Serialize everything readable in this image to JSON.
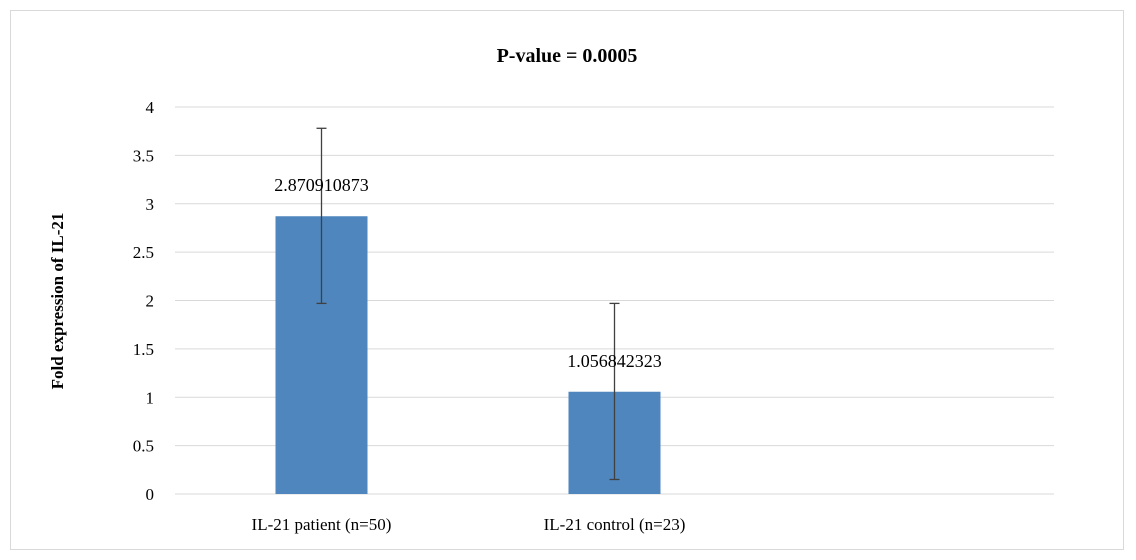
{
  "chart_data": {
    "type": "bar",
    "title": "P-value = 0.0005",
    "xlabel": "",
    "ylabel": "Fold expression of IL-21",
    "categories": [
      "IL-21 patient (n=50)",
      "IL-21 control (n=23)"
    ],
    "values": [
      2.870910873,
      1.056842323
    ],
    "data_labels": [
      "2.870910873",
      "1.056842323"
    ],
    "error_bars": [
      {
        "low": 1.97,
        "high": 3.78
      },
      {
        "low": 0.15,
        "high": 1.97
      }
    ],
    "ylim": [
      0,
      4
    ],
    "yticks": [
      0,
      0.5,
      1,
      1.5,
      2,
      2.5,
      3,
      3.5,
      4
    ],
    "ytick_labels": [
      "0",
      "0.5",
      "1",
      "1.5",
      "2",
      "2.5",
      "3",
      "3.5",
      "4"
    ],
    "grid": true,
    "legend": "none",
    "colors": {
      "bar": "#4f86bd",
      "grid": "#d9d9d9",
      "error": "#404040"
    }
  }
}
